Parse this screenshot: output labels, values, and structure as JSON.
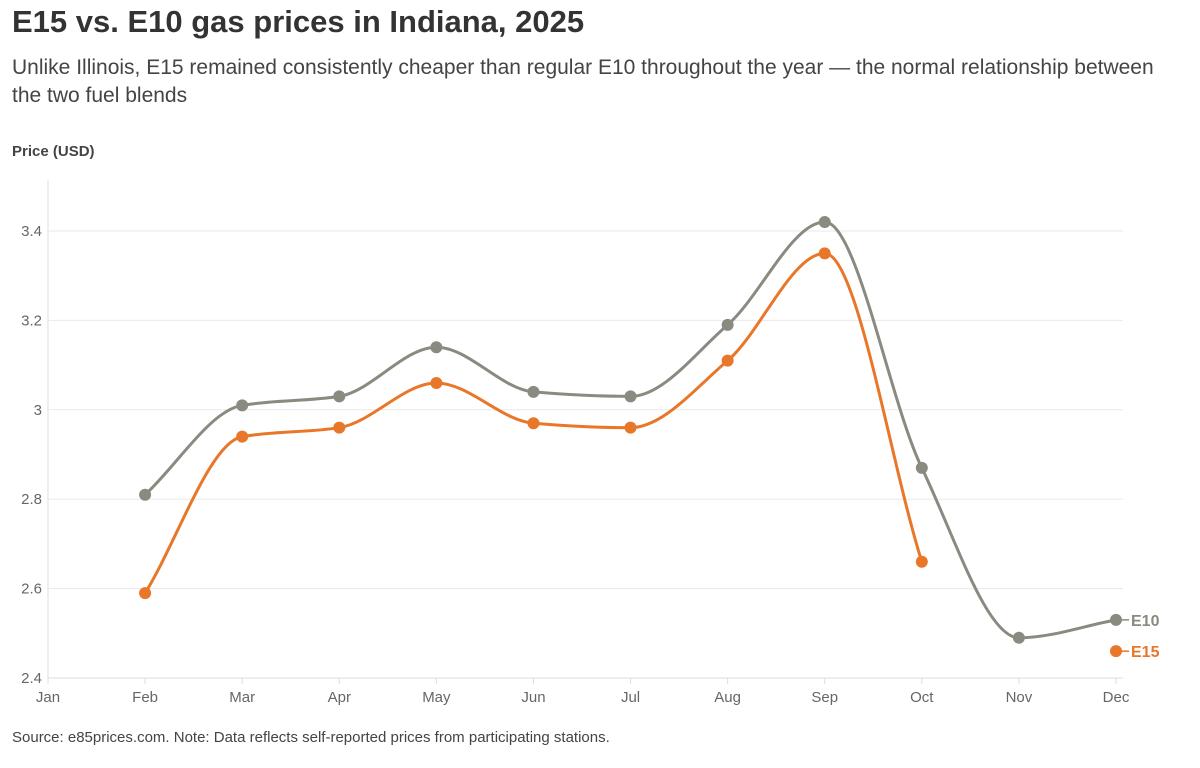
{
  "title": "E15 vs. E10 gas prices in Indiana, 2025",
  "subtitle": "Unlike Illinois, E15 remained consistently cheaper than regular E10 throughout the year — the normal relationship between the two fuel blends",
  "source": "Source: e85prices.com. Note: Data reflects self-reported prices from participating stations.",
  "chart_data": {
    "type": "line",
    "ylabel": "Price (USD)",
    "ylim": [
      2.4,
      3.5
    ],
    "yticks": [
      "2.4",
      "2.6",
      "2.8",
      "3",
      "3.2",
      "3.4"
    ],
    "categories": [
      "Jan",
      "Feb",
      "Mar",
      "Apr",
      "May",
      "Jun",
      "Jul",
      "Aug",
      "Sep",
      "Oct",
      "Nov",
      "Dec"
    ],
    "grid": true,
    "legend": "direct labels at right end",
    "series": [
      {
        "name": "E10",
        "color": "#8a8a80",
        "values": [
          null,
          2.81,
          3.01,
          3.03,
          3.14,
          3.04,
          3.03,
          3.19,
          3.42,
          2.87,
          2.49,
          2.53
        ]
      },
      {
        "name": "E15",
        "color": "#e8772a",
        "values": [
          null,
          2.59,
          2.94,
          2.96,
          3.06,
          2.97,
          2.96,
          3.11,
          3.35,
          2.66,
          null,
          2.46
        ]
      }
    ]
  }
}
